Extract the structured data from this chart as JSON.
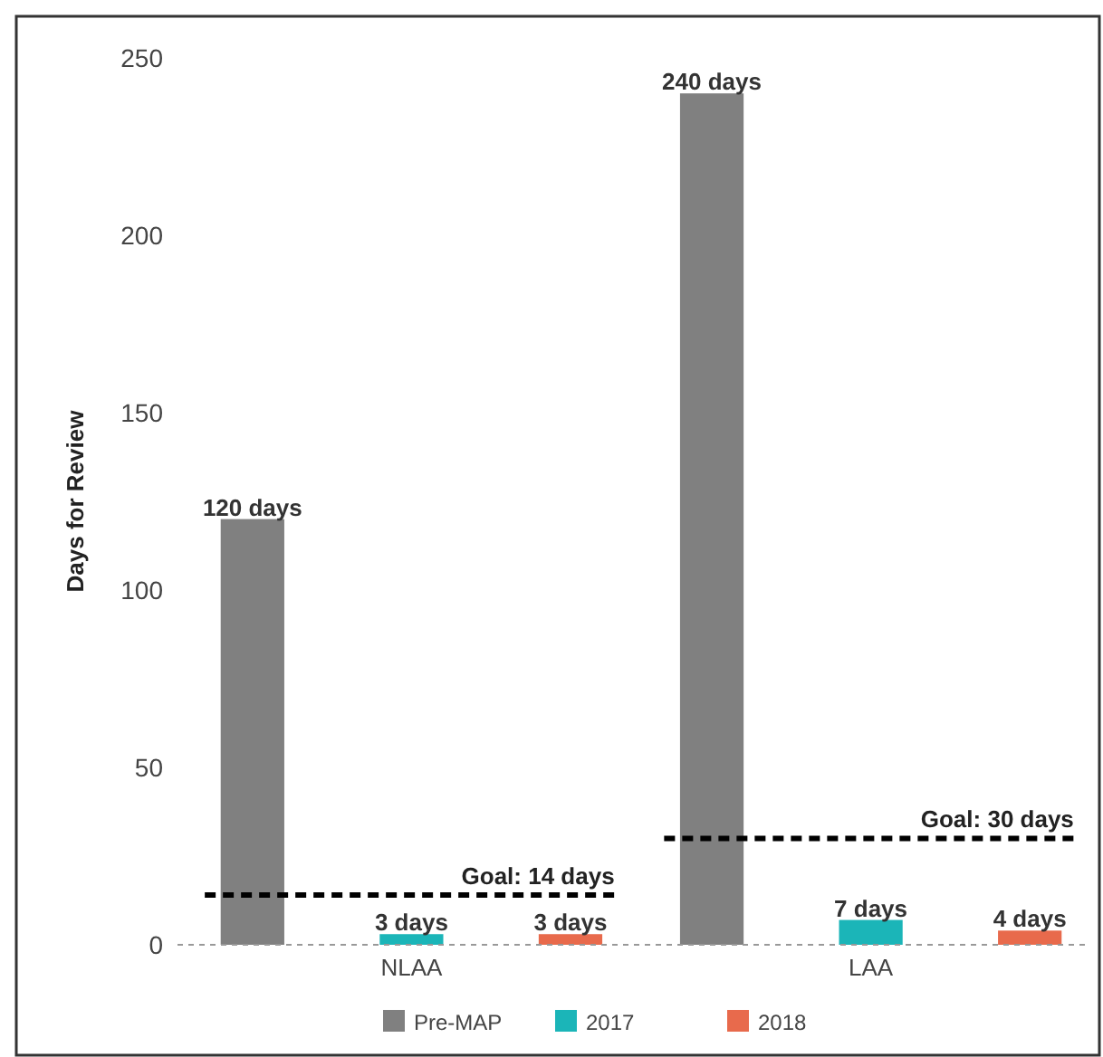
{
  "chart_data": {
    "type": "bar",
    "ylabel": "Days for Review",
    "categories": [
      "NLAA",
      "LAA"
    ],
    "series": [
      {
        "name": "Pre-MAP",
        "color": "#808080",
        "values": [
          120,
          240
        ],
        "value_labels": [
          "120 days",
          "240 days"
        ]
      },
      {
        "name": "2017",
        "color": "#1bb5b8",
        "values": [
          3,
          7
        ],
        "value_labels": [
          "3 days",
          "7 days"
        ]
      },
      {
        "name": "2018",
        "color": "#e86a4c",
        "values": [
          3,
          4
        ],
        "value_labels": [
          "3 days",
          "4 days"
        ]
      }
    ],
    "ylim": [
      0,
      250
    ],
    "yticks": [
      0,
      50,
      100,
      150,
      200,
      250
    ],
    "grid": false,
    "legend": "bottom",
    "ref_lines": [
      {
        "axis": "y",
        "value": 14,
        "label": "Goal: 14 days",
        "color": "#000000",
        "line_style": "dashed"
      },
      {
        "axis": "y",
        "value": 30,
        "label": "Goal: 30 days",
        "color": "#000000",
        "line_style": "dashed"
      }
    ]
  }
}
